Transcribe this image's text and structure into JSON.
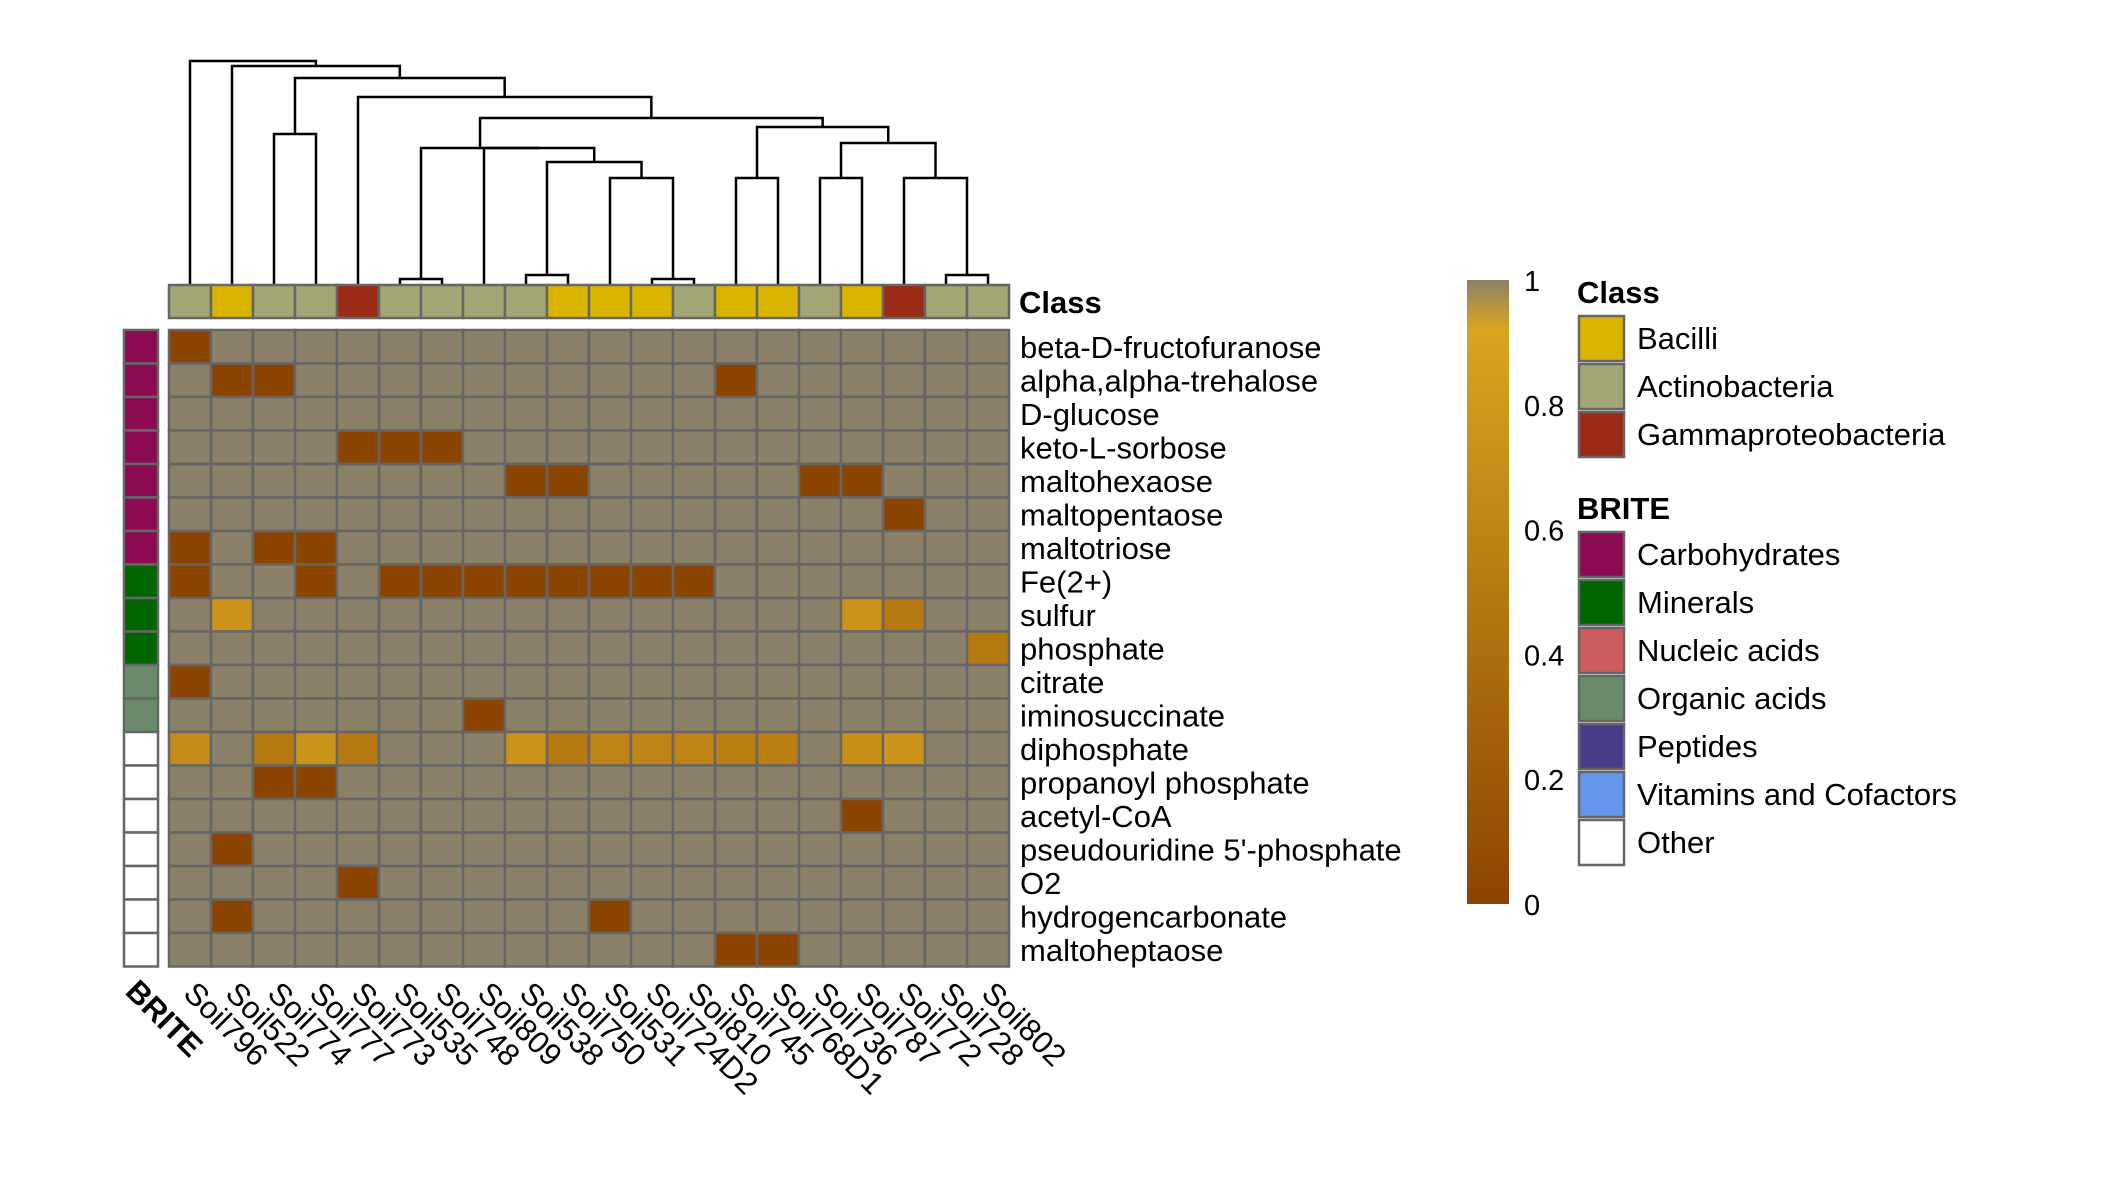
{
  "chart_data": {
    "type": "heatmap",
    "columns": [
      "Soil796",
      "Soil522",
      "Soil774",
      "Soil777",
      "Soil773",
      "Soil535",
      "Soil748",
      "Soil809",
      "Soil538",
      "Soil750",
      "Soil531",
      "Soil724D2",
      "Soil810",
      "Soil745",
      "Soil768D1",
      "Soil736",
      "Soil787",
      "Soil772",
      "Soil728",
      "Soil802"
    ],
    "rows": [
      "beta-D-fructofuranose",
      "alpha,alpha-trehalose",
      "D-glucose",
      "keto-L-sorbose",
      "maltohexaose",
      "maltopentaose",
      "maltotriose",
      "Fe(2+)",
      "sulfur",
      "phosphate",
      "citrate",
      "iminosuccinate",
      "diphosphate",
      "propanoyl phosphate",
      "acetyl-CoA",
      "pseudouridine 5'-phosphate",
      "O2",
      "hydrogencarbonate",
      "maltoheptaose"
    ],
    "values": [
      [
        0,
        1,
        1,
        1,
        1,
        1,
        1,
        1,
        1,
        1,
        1,
        1,
        1,
        1,
        1,
        1,
        1,
        1,
        1,
        1
      ],
      [
        1,
        0,
        0,
        1,
        1,
        1,
        1,
        1,
        1,
        1,
        1,
        1,
        1,
        0,
        1,
        1,
        1,
        1,
        1,
        1
      ],
      [
        1,
        1,
        1,
        1,
        1,
        1,
        1,
        1,
        1,
        1,
        1,
        1,
        1,
        1,
        1,
        1,
        1,
        1,
        1,
        1
      ],
      [
        1,
        1,
        1,
        1,
        0,
        0,
        0,
        1,
        1,
        1,
        1,
        1,
        1,
        1,
        1,
        1,
        1,
        1,
        1,
        1
      ],
      [
        1,
        1,
        1,
        1,
        1,
        1,
        1,
        1,
        0,
        0,
        1,
        1,
        1,
        1,
        1,
        0,
        0,
        1,
        1,
        1
      ],
      [
        1,
        1,
        1,
        1,
        1,
        1,
        1,
        1,
        1,
        1,
        1,
        1,
        1,
        1,
        1,
        1,
        1,
        0,
        1,
        1
      ],
      [
        0,
        1,
        0,
        0,
        1,
        1,
        1,
        1,
        1,
        1,
        1,
        1,
        1,
        1,
        1,
        1,
        1,
        1,
        1,
        1
      ],
      [
        0,
        1,
        1,
        0,
        1,
        0,
        0,
        0,
        0,
        0,
        0,
        0,
        0,
        1,
        1,
        1,
        1,
        1,
        1,
        1
      ],
      [
        1,
        0.75,
        1,
        1,
        1,
        1,
        1,
        1,
        1,
        1,
        1,
        1,
        1,
        1,
        1,
        1,
        0.75,
        0.5,
        1,
        1
      ],
      [
        1,
        1,
        1,
        1,
        1,
        1,
        1,
        1,
        1,
        1,
        1,
        1,
        1,
        1,
        1,
        1,
        1,
        1,
        1,
        0.5
      ],
      [
        0,
        1,
        1,
        1,
        1,
        1,
        1,
        1,
        1,
        1,
        1,
        1,
        1,
        1,
        1,
        1,
        1,
        1,
        1,
        1
      ],
      [
        1,
        1,
        1,
        1,
        1,
        1,
        1,
        0,
        1,
        1,
        1,
        1,
        1,
        1,
        1,
        1,
        1,
        1,
        1,
        1
      ],
      [
        0.67,
        1,
        0.5,
        0.75,
        0.5,
        1,
        1,
        1,
        0.75,
        0.5,
        0.6,
        0.6,
        0.6,
        0.55,
        0.55,
        1,
        0.7,
        0.75,
        1,
        1
      ],
      [
        1,
        1,
        0,
        0,
        1,
        1,
        1,
        1,
        1,
        1,
        1,
        1,
        1,
        1,
        1,
        1,
        1,
        1,
        1,
        1
      ],
      [
        1,
        1,
        1,
        1,
        1,
        1,
        1,
        1,
        1,
        1,
        1,
        1,
        1,
        1,
        1,
        1,
        0,
        1,
        1,
        1
      ],
      [
        1,
        0,
        1,
        1,
        1,
        1,
        1,
        1,
        1,
        1,
        1,
        1,
        1,
        1,
        1,
        1,
        1,
        1,
        1,
        1
      ],
      [
        1,
        1,
        1,
        1,
        0,
        1,
        1,
        1,
        1,
        1,
        1,
        1,
        1,
        1,
        1,
        1,
        1,
        1,
        1,
        1
      ],
      [
        1,
        0,
        1,
        1,
        1,
        1,
        1,
        1,
        1,
        1,
        0,
        1,
        1,
        1,
        1,
        1,
        1,
        1,
        1,
        1
      ],
      [
        1,
        1,
        1,
        1,
        1,
        1,
        1,
        1,
        1,
        1,
        1,
        1,
        1,
        0,
        0,
        1,
        1,
        1,
        1,
        1
      ]
    ],
    "column_class": [
      "Actinobacteria",
      "Bacilli",
      "Actinobacteria",
      "Actinobacteria",
      "Gammaproteobacteria",
      "Actinobacteria",
      "Actinobacteria",
      "Actinobacteria",
      "Actinobacteria",
      "Bacilli",
      "Bacilli",
      "Bacilli",
      "Actinobacteria",
      "Bacilli",
      "Bacilli",
      "Actinobacteria",
      "Bacilli",
      "Gammaproteobacteria",
      "Actinobacteria",
      "Actinobacteria"
    ],
    "row_brite": [
      "Carbohydrates",
      "Carbohydrates",
      "Carbohydrates",
      "Carbohydrates",
      "Carbohydrates",
      "Carbohydrates",
      "Carbohydrates",
      "Minerals",
      "Minerals",
      "Minerals",
      "Organic acids",
      "Organic acids",
      "Other",
      "Other",
      "Other",
      "Other",
      "Other",
      "Other",
      "Other"
    ],
    "class_annotation_label": "Class",
    "brite_annotation_label": "BRITE",
    "color_scale": {
      "min": 0,
      "max": 1,
      "ticks": [
        "0",
        "0.2",
        "0.4",
        "0.6",
        "0.8",
        "1"
      ],
      "colors": [
        "#8b4500",
        "#daa520",
        "#8b8068"
      ]
    },
    "legend_class": {
      "title": "Class",
      "items": [
        {
          "label": "Bacilli",
          "color": "#dab500"
        },
        {
          "label": "Actinobacteria",
          "color": "#a2a574"
        },
        {
          "label": "Gammaproteobacteria",
          "color": "#9b2b16"
        }
      ]
    },
    "legend_brite": {
      "title": "BRITE",
      "items": [
        {
          "label": "Carbohydrates",
          "color": "#8b0a50"
        },
        {
          "label": "Minerals",
          "color": "#006400"
        },
        {
          "label": "Nucleic acids",
          "color": "#cd5c5c"
        },
        {
          "label": "Organic acids",
          "color": "#698b69"
        },
        {
          "label": "Peptides",
          "color": "#483d8b"
        },
        {
          "label": "Vitamins and Cofactors",
          "color": "#6495ed"
        },
        {
          "label": "Other",
          "color": "#ffffff"
        }
      ]
    }
  }
}
